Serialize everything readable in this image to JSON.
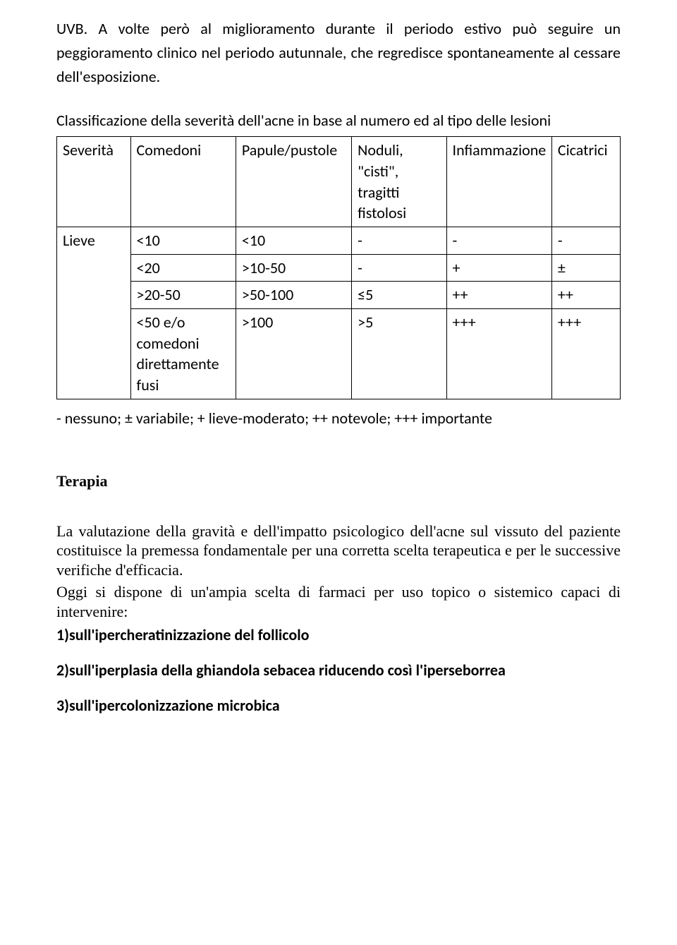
{
  "intro": "UVB. A volte però al miglioramento durante il periodo estivo può seguire un peggioramento clinico nel periodo autunnale, che regredisce spontaneamente al cessare dell'esposizione.",
  "tableTitle": "Classificazione della severità dell'acne in base al numero ed al tipo delle lesioni",
  "table": {
    "headers": [
      "Severità",
      "Comedoni",
      "Papule/pustole",
      "Noduli, \"cisti\", tragitti fistolosi",
      "Infiammazione",
      "Cicatrici"
    ],
    "firstColLabel": "Lieve",
    "rows": [
      [
        "<10",
        "<10",
        "-",
        "-",
        "-"
      ],
      [
        "<20",
        ">10-50",
        "-",
        "+",
        "±"
      ],
      [
        ">20-50",
        ">50-100",
        "≤5",
        "++",
        "++"
      ],
      [
        "<50 e/o comedoni direttamente fusi",
        ">100",
        ">5",
        "+++",
        "+++"
      ]
    ]
  },
  "legend": "- nessuno; ± variabile; + lieve-moderato; ++ notevole; +++ importante",
  "therapy": {
    "heading": "Terapia",
    "p1": "La valutazione della gravità e dell'impatto psicologico dell'acne sul vissuto del paziente costituisce la premessa fondamentale per una corretta scelta terapeutica e per le successive verifiche d'efficacia.",
    "p2": "Oggi si dispone di un'ampia scelta di farmaci per uso topico o sistemico capaci di intervenire:",
    "items": [
      "1)sull'ipercheratinizzazione del follicolo",
      "2)sull'iperplasia della ghiandola sebacea riducendo così l'iperseborrea",
      "3)sull'ipercolonizzazione microbica"
    ]
  }
}
